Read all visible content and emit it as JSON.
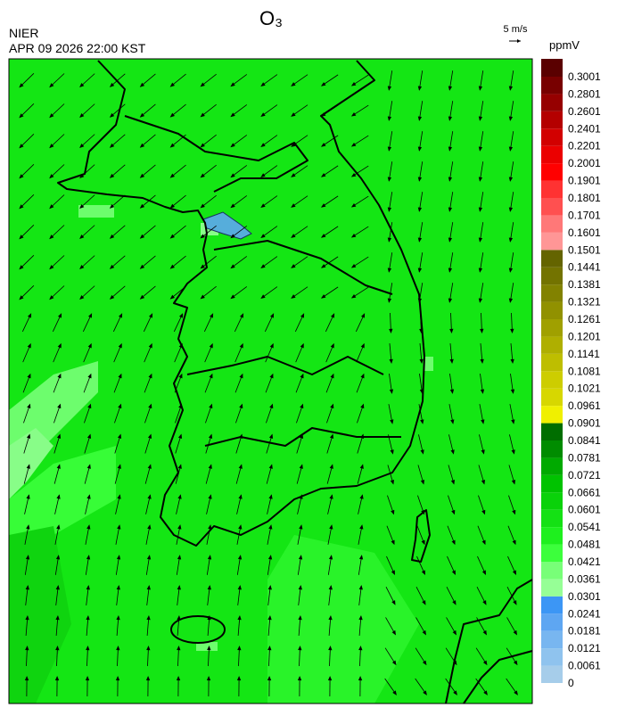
{
  "header": {
    "title": "O₃",
    "agency": "NIER",
    "datetime": "APR 09 2026 22:00 KST",
    "reference_vector": "5 m/s"
  },
  "colorbar": {
    "unit": "ppmV",
    "ticks": [
      0,
      0.0061,
      0.0121,
      0.0181,
      0.0241,
      0.0301,
      0.0361,
      0.0421,
      0.0481,
      0.0541,
      0.0601,
      0.0661,
      0.0721,
      0.0781,
      0.0841,
      0.0901,
      0.0961,
      0.1021,
      0.1081,
      0.1141,
      0.1201,
      0.1261,
      0.1321,
      0.1381,
      0.1441,
      0.1501,
      0.1601,
      0.1701,
      0.1801,
      0.1901,
      0.2001,
      0.2201,
      0.2401,
      0.2601,
      0.2801,
      0.3001
    ],
    "colors": [
      "#a6cdea",
      "#8fc3ee",
      "#78b6f0",
      "#5ea6f2",
      "#3c96f5",
      "#96ff96",
      "#78ff78",
      "#3cff3c",
      "#1ef01e",
      "#14e114",
      "#0ad20a",
      "#00c300",
      "#00aa00",
      "#008c00",
      "#006e00",
      "#f0f000",
      "#d7d700",
      "#cdcd00",
      "#bebe00",
      "#afaf00",
      "#a0a000",
      "#919100",
      "#828200",
      "#737300",
      "#646400",
      "#ff9696",
      "#ff7878",
      "#ff5050",
      "#ff3232",
      "#ff0000",
      "#eb0000",
      "#d20000",
      "#b40000",
      "#960000",
      "#780000",
      "#5a0000"
    ]
  }
}
